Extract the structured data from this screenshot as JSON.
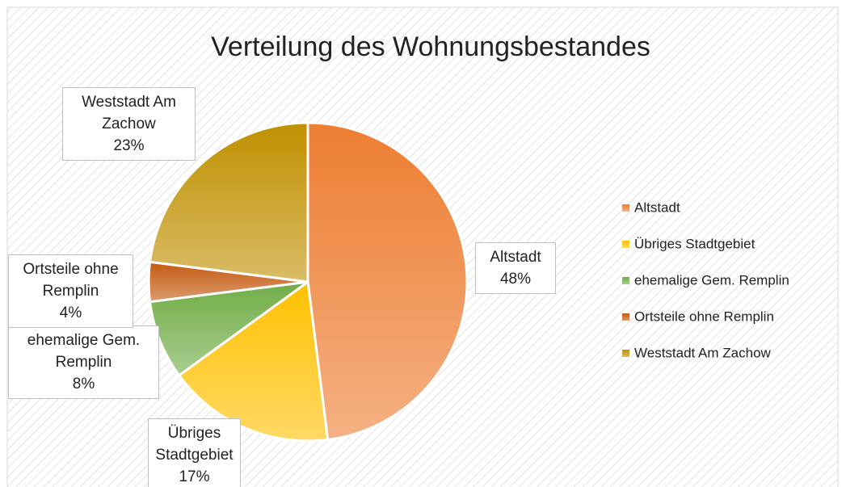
{
  "chart_data": {
    "type": "pie",
    "title": "Verteilung des Wohnungsbestandes",
    "categories": [
      "Altstadt",
      "Übriges Stadtgebiet",
      "ehemalige Gem. Remplin",
      "Ortsteile ohne Remplin",
      "Weststadt Am Zachow"
    ],
    "values": [
      48,
      17,
      8,
      4,
      23
    ],
    "value_labels": [
      "48%",
      "17%",
      "8%",
      "4%",
      "23%"
    ],
    "colors": [
      "#ed7d31",
      "#ffc000",
      "#70ad47",
      "#c55a11",
      "#bf9000"
    ],
    "legend": "right"
  }
}
